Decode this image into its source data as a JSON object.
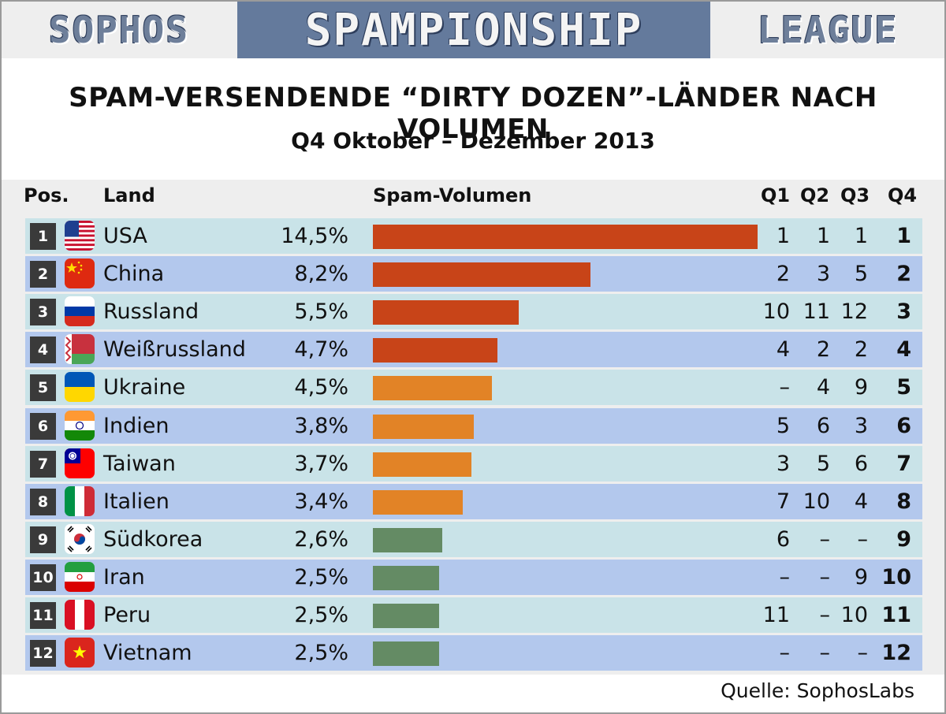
{
  "banner": {
    "left": "SOPHOS",
    "middle": "SPAMPIONSHIP",
    "right": "LEAGUE"
  },
  "title": "SPAM-VERSENDENDE “DIRTY DOZEN”-LÄNDER NACH VOLUMEN",
  "subtitle": "Q4 Oktober – Dezember 2013",
  "headers": {
    "pos": "Pos.",
    "land": "Land",
    "volume": "Spam-Volumen",
    "q1": "Q1",
    "q2": "Q2",
    "q3": "Q3",
    "q4": "Q4"
  },
  "source": "Quelle: SophosLabs",
  "colors": {
    "high": "#c84418",
    "mid": "#e28326",
    "low": "#648b64"
  },
  "rows": [
    {
      "pos": "1",
      "land": "USA",
      "pct": "14,5%",
      "q1": "1",
      "q2": "1",
      "q3": "1",
      "q4": "1",
      "flag": "usa-flag-icon"
    },
    {
      "pos": "2",
      "land": "China",
      "pct": "8,2%",
      "q1": "2",
      "q2": "3",
      "q3": "5",
      "q4": "2",
      "flag": "china-flag-icon"
    },
    {
      "pos": "3",
      "land": "Russland",
      "pct": "5,5%",
      "q1": "10",
      "q2": "11",
      "q3": "12",
      "q4": "3",
      "flag": "russia-flag-icon"
    },
    {
      "pos": "4",
      "land": "Weißrussland",
      "pct": "4,7%",
      "q1": "4",
      "q2": "2",
      "q3": "2",
      "q4": "4",
      "flag": "belarus-flag-icon"
    },
    {
      "pos": "5",
      "land": "Ukraine",
      "pct": "4,5%",
      "q1": "–",
      "q2": "4",
      "q3": "9",
      "q4": "5",
      "flag": "ukraine-flag-icon"
    },
    {
      "pos": "6",
      "land": "Indien",
      "pct": "3,8%",
      "q1": "5",
      "q2": "6",
      "q3": "3",
      "q4": "6",
      "flag": "india-flag-icon"
    },
    {
      "pos": "7",
      "land": "Taiwan",
      "pct": "3,7%",
      "q1": "3",
      "q2": "5",
      "q3": "6",
      "q4": "7",
      "flag": "taiwan-flag-icon"
    },
    {
      "pos": "8",
      "land": "Italien",
      "pct": "3,4%",
      "q1": "7",
      "q2": "10",
      "q3": "4",
      "q4": "8",
      "flag": "italy-flag-icon"
    },
    {
      "pos": "9",
      "land": "Südkorea",
      "pct": "2,6%",
      "q1": "6",
      "q2": "–",
      "q3": "–",
      "q4": "9",
      "flag": "south-korea-flag-icon"
    },
    {
      "pos": "10",
      "land": "Iran",
      "pct": "2,5%",
      "q1": "–",
      "q2": "–",
      "q3": "9",
      "q4": "10",
      "flag": "iran-flag-icon"
    },
    {
      "pos": "11",
      "land": "Peru",
      "pct": "2,5%",
      "q1": "11",
      "q2": "–",
      "q3": "10",
      "q4": "11",
      "flag": "peru-flag-icon"
    },
    {
      "pos": "12",
      "land": "Vietnam",
      "pct": "2,5%",
      "q1": "–",
      "q2": "–",
      "q3": "–",
      "q4": "12",
      "flag": "vietnam-flag-icon"
    }
  ],
  "chart_data": {
    "type": "bar",
    "orientation": "horizontal",
    "categories": [
      "USA",
      "China",
      "Russland",
      "Weißrussland",
      "Ukraine",
      "Indien",
      "Taiwan",
      "Italien",
      "Südkorea",
      "Iran",
      "Peru",
      "Vietnam"
    ],
    "values": [
      14.5,
      8.2,
      5.5,
      4.7,
      4.5,
      3.8,
      3.7,
      3.4,
      2.6,
      2.5,
      2.5,
      2.5
    ],
    "bar_color_groups": [
      "high",
      "high",
      "high",
      "high",
      "mid",
      "mid",
      "mid",
      "mid",
      "low",
      "low",
      "low",
      "low"
    ],
    "unit": "%",
    "xlim": [
      0,
      14.5
    ]
  }
}
